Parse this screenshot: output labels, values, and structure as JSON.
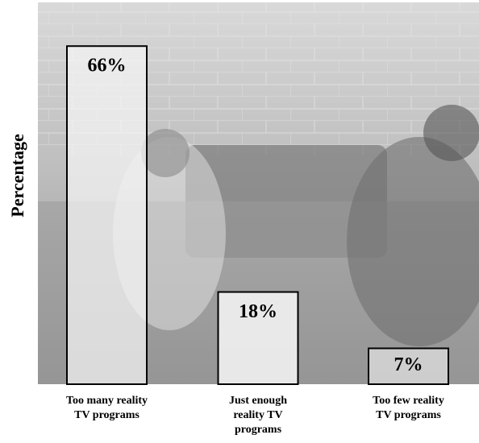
{
  "chart_data": {
    "type": "bar",
    "y_label": "Percentage",
    "categories": [
      "Too many reality TV programs",
      "Just enough reality TV programs",
      "Too few reality TV programs"
    ],
    "values": [
      66,
      18,
      7
    ],
    "value_labels": [
      "66%",
      "18%",
      "7%"
    ]
  }
}
